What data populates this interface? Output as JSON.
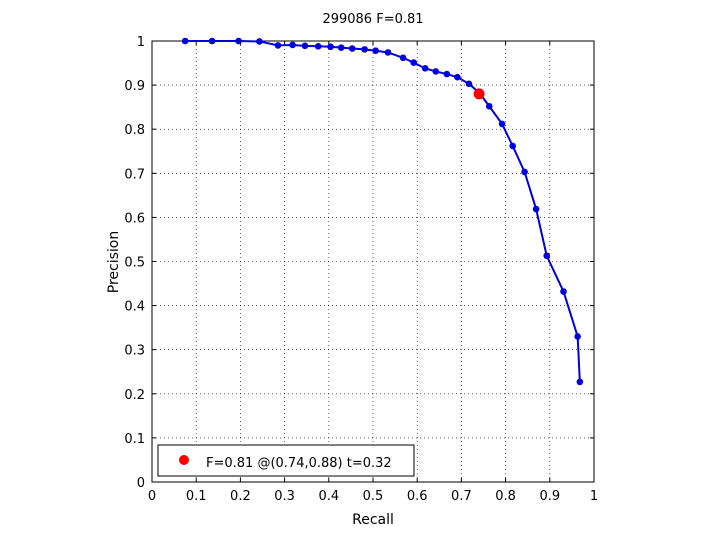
{
  "chart_data": {
    "type": "line",
    "title": "299086 F=0.81",
    "xlabel": "Recall",
    "ylabel": "Precision",
    "xlim": [
      0,
      1
    ],
    "ylim": [
      0,
      1
    ],
    "xticks": [
      0,
      0.1,
      0.2,
      0.3,
      0.4,
      0.5,
      0.6,
      0.7,
      0.8,
      0.9,
      1
    ],
    "yticks": [
      0,
      0.1,
      0.2,
      0.3,
      0.4,
      0.5,
      0.6,
      0.7,
      0.8,
      0.9,
      1
    ],
    "xtick_labels": [
      "0",
      "0.1",
      "0.2",
      "0.3",
      "0.4",
      "0.5",
      "0.6",
      "0.7",
      "0.8",
      "0.9",
      "1"
    ],
    "ytick_labels": [
      "0",
      "0.1",
      "0.2",
      "0.3",
      "0.4",
      "0.5",
      "0.6",
      "0.7",
      "0.8",
      "0.9",
      "1"
    ],
    "grid": true,
    "legend_position": "bottom-left",
    "series": [
      {
        "color": "#0000e0",
        "marker": "dot",
        "x": [
          0.075,
          0.136,
          0.196,
          0.243,
          0.285,
          0.318,
          0.346,
          0.376,
          0.404,
          0.428,
          0.453,
          0.481,
          0.506,
          0.534,
          0.568,
          0.592,
          0.618,
          0.642,
          0.667,
          0.691,
          0.717,
          0.741,
          0.763,
          0.792,
          0.816,
          0.843,
          0.869,
          0.893,
          0.931,
          0.963,
          0.968
        ],
        "y": [
          1.0,
          1.0,
          1.0,
          0.999,
          0.99,
          0.991,
          0.989,
          0.988,
          0.987,
          0.985,
          0.983,
          0.981,
          0.978,
          0.974,
          0.962,
          0.951,
          0.938,
          0.931,
          0.925,
          0.918,
          0.903,
          0.882,
          0.852,
          0.812,
          0.762,
          0.703,
          0.619,
          0.513,
          0.432,
          0.33,
          0.227
        ]
      }
    ],
    "highlight": {
      "label": "F=0.81 @(0.74,0.88) t=0.32",
      "x": 0.74,
      "y": 0.88,
      "color": "#ff0000"
    }
  }
}
